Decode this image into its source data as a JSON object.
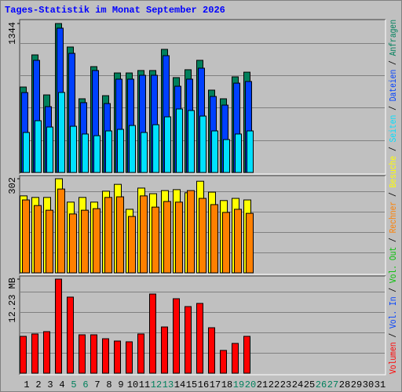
{
  "title": "Tages-Statistik im Monat September 2026",
  "legend_separator": " / ",
  "chart_data": [
    {
      "type": "bar",
      "ylim": [
        0,
        1344
      ],
      "yticks": [
        1344
      ],
      "series": [
        {
          "name": "Anfragen",
          "color": "#00805c",
          "values": [
            771,
            1061,
            700,
            1344,
            1132,
            665,
            955,
            693,
            898,
            898,
            920,
            920,
            1111,
            856,
            927,
            1012,
            743,
            665,
            863,
            905,
            null,
            null,
            null,
            null,
            null,
            null,
            null,
            null,
            null,
            null,
            null
          ]
        },
        {
          "name": "Dateien",
          "color": "#0040ff",
          "values": [
            721,
            1012,
            594,
            1302,
            1075,
            630,
            920,
            622,
            842,
            842,
            877,
            877,
            1054,
            778,
            842,
            941,
            686,
            608,
            806,
            821,
            null,
            null,
            null,
            null,
            null,
            null,
            null,
            null,
            null,
            null,
            null
          ]
        },
        {
          "name": "Seiten",
          "color": "#00e0ff",
          "values": [
            361,
            467,
            410,
            722,
            417,
            347,
            332,
            375,
            389,
            424,
            361,
            431,
            502,
            573,
            559,
            509,
            375,
            297,
            347,
            375,
            null,
            null,
            null,
            null,
            null,
            null,
            null,
            null,
            null,
            null,
            null
          ]
        }
      ]
    },
    {
      "type": "bar",
      "ylim": [
        0,
        302
      ],
      "yticks": [
        302
      ],
      "series": [
        {
          "name": "Besuche",
          "color": "#ffff00",
          "values": [
            247,
            242,
            242,
            302,
            227,
            242,
            227,
            262,
            284,
            204,
            272,
            254,
            264,
            267,
            257,
            294,
            259,
            232,
            239,
            234,
            null,
            null,
            null,
            null,
            null,
            null,
            null,
            null,
            null,
            null,
            null
          ]
        },
        {
          "name": "Rechner",
          "color": "#ff8000",
          "values": [
            234,
            216,
            201,
            269,
            189,
            201,
            206,
            242,
            244,
            181,
            247,
            211,
            229,
            227,
            264,
            239,
            219,
            194,
            204,
            191,
            null,
            null,
            null,
            null,
            null,
            null,
            null,
            null,
            null,
            null,
            null
          ]
        }
      ]
    },
    {
      "type": "bar",
      "ylim": [
        0,
        12.23
      ],
      "yticks": [
        {
          "value": 12.23,
          "label": "12.23 MB"
        }
      ],
      "categories": [
        "1",
        "2",
        "3",
        "4",
        "5",
        "6",
        "7",
        "8",
        "9",
        "10",
        "11",
        "12",
        "13",
        "14",
        "15",
        "16",
        "17",
        "18",
        "19",
        "20",
        "21",
        "22",
        "23",
        "24",
        "25",
        "26",
        "27",
        "28",
        "29",
        "30",
        "31"
      ],
      "highlight_categories": [
        "5",
        "6",
        "12",
        "13",
        "19",
        "20",
        "26",
        "27"
      ],
      "highlight_color": "#00805c",
      "series": [
        {
          "name": "Vol. Out",
          "color": "#00c000",
          "values": [
            null,
            null,
            null,
            null,
            null,
            null,
            null,
            null,
            null,
            null,
            null,
            null,
            null,
            null,
            null,
            null,
            null,
            null,
            null,
            null,
            null,
            null,
            null,
            null,
            null,
            null,
            null,
            null,
            null,
            null,
            null
          ]
        },
        {
          "name": "Vol. In",
          "color": "#0040ff",
          "values": [
            null,
            null,
            null,
            null,
            null,
            null,
            null,
            null,
            null,
            null,
            null,
            null,
            null,
            null,
            null,
            null,
            null,
            null,
            null,
            null,
            null,
            null,
            null,
            null,
            null,
            null,
            null,
            null,
            null,
            null,
            null
          ]
        },
        {
          "name": "Volumen",
          "color": "#ff0000",
          "values": [
            4.79,
            5.1,
            5.4,
            12.23,
            9.89,
            4.99,
            4.99,
            4.48,
            4.18,
            4.08,
            5.1,
            10.29,
            6.01,
            9.68,
            8.66,
            9.07,
            5.91,
            2.96,
            3.87,
            4.79,
            null,
            null,
            null,
            null,
            null,
            null,
            null,
            null,
            null,
            null,
            null
          ]
        }
      ]
    }
  ]
}
